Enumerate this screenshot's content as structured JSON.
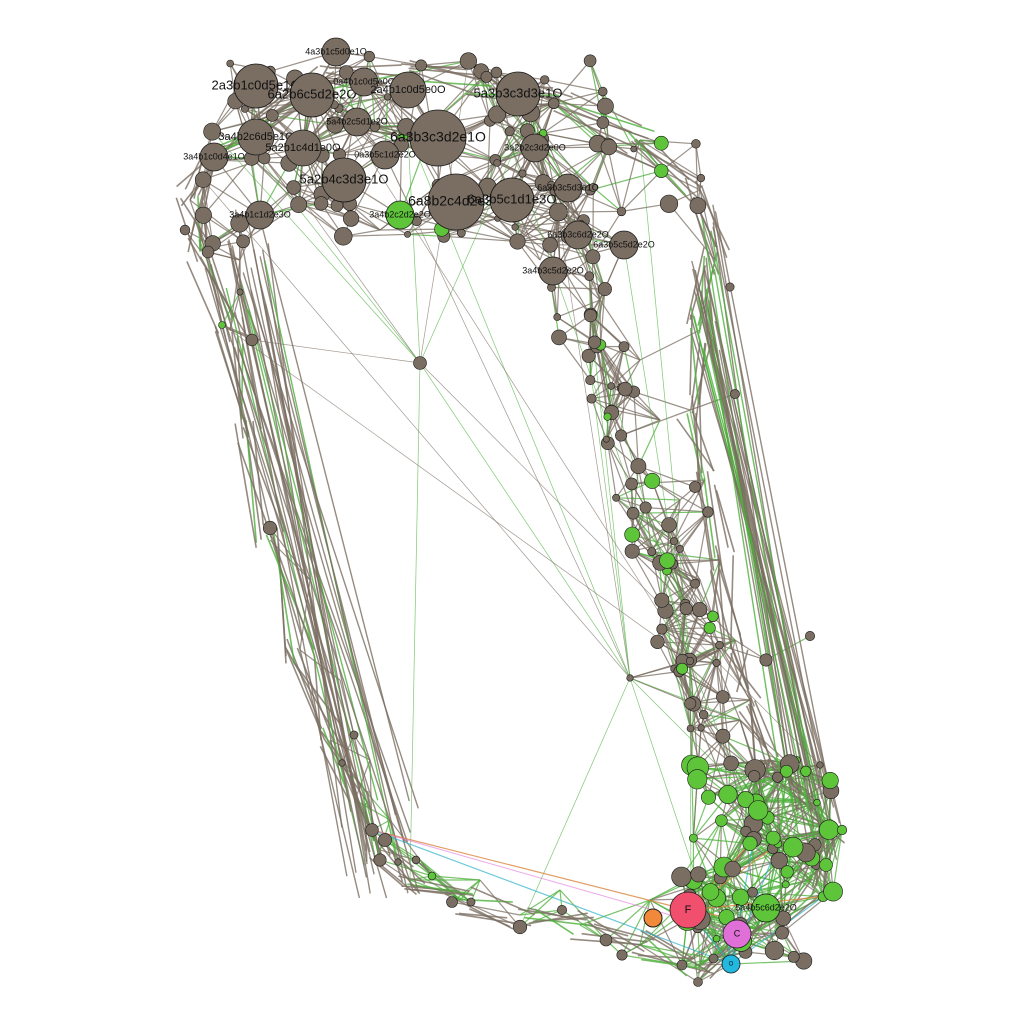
{
  "colors": {
    "background": "#ffffff",
    "node_default": "#7a6e62",
    "node_green": "#5ec43a",
    "node_red": "#f0506e",
    "node_orange": "#f08a3a",
    "node_pink": "#e070d8",
    "node_cyan": "#22b8e0",
    "edge_gray": "#7a6e62",
    "edge_green": "#4caf3a",
    "edge_orange": "#d9843c",
    "edge_cyan": "#2bb0c8",
    "edge_pink": "#e070d8"
  },
  "labeled_nodes": [
    {
      "id": "2a3b1c0d5e1O",
      "label": "2a3b1c0d5e1O",
      "color": "gray",
      "weight": 5
    },
    {
      "id": "4a3b1c5d0e1O",
      "label": "4a3b1c5d0e1O",
      "color": "gray",
      "weight": 3
    },
    {
      "id": "6a2b6c5d2e2O",
      "label": "6a2b6c5d2e2O",
      "color": "gray",
      "weight": 5
    },
    {
      "id": "0a4b1c0d5e0O",
      "label": "0a4b1c0d5e0O",
      "color": "gray",
      "weight": 3
    },
    {
      "id": "2a4b1c0d5e0O",
      "label": "2a4b1c0d5e0O",
      "color": "gray",
      "weight": 4
    },
    {
      "id": "5a3b3c3d3e1O",
      "label": "5a3b3c3d3e1O",
      "color": "gray",
      "weight": 5
    },
    {
      "id": "5a4b2c5d1e2O",
      "label": "5a4b2c5d1e2O",
      "color": "gray",
      "weight": 3
    },
    {
      "id": "6a3b3c3d2e1O",
      "label": "6a3b3c3d2e1O",
      "color": "gray",
      "weight": 6
    },
    {
      "id": "3a4b2c6d5e1O",
      "label": "3a4b2c6d5e1O",
      "color": "gray",
      "weight": 4
    },
    {
      "id": "5a2b1c4d1e0O",
      "label": "5a2b1c4d1e0O",
      "color": "gray",
      "weight": 4
    },
    {
      "id": "0a3b5c1d2e2O",
      "label": "0a3b5c1d2e2O",
      "color": "gray",
      "weight": 3
    },
    {
      "id": "3a2b2c3d2e0O",
      "label": "3a2b2c3d2e0O",
      "color": "gray",
      "weight": 3
    },
    {
      "id": "3a4b1c0d4e1O",
      "label": "3a4b1c0d4e1O",
      "color": "gray",
      "weight": 3
    },
    {
      "id": "5a2b4c3d3e1O",
      "label": "5a2b4c3d3e1O",
      "color": "gray",
      "weight": 5
    },
    {
      "id": "6a3b3c5d3e1O",
      "label": "6a3b3c5d3e1O",
      "color": "gray",
      "weight": 3
    },
    {
      "id": "3a4b1c1d2e3O",
      "label": "3a4b1c1d2e3O",
      "color": "gray",
      "weight": 3
    },
    {
      "id": "6a8b2c4d2e3O",
      "label": "6a8b2c4d2e3O",
      "color": "gray",
      "weight": 6
    },
    {
      "id": "6a3b5c1d1e3O",
      "label": "6a3b5c1d1e3O",
      "color": "gray",
      "weight": 5
    },
    {
      "id": "3a4b2c2d2e2O",
      "label": "3a4b2c2d2e2O",
      "color": "green",
      "weight": 3
    },
    {
      "id": "6a3b3c6d2e2O",
      "label": "6a3b3c6d2e2O",
      "color": "gray",
      "weight": 3
    },
    {
      "id": "6a3b5c5d2e2O",
      "label": "6a3b5c5d2e2O",
      "color": "gray",
      "weight": 3
    },
    {
      "id": "3a4b3c5d2e2O",
      "label": "3a4b3c5d2e2O",
      "color": "gray",
      "weight": 3
    },
    {
      "id": "5a4b5c6d2e2O",
      "label": "5a4b5c6d2e2O",
      "color": "green",
      "weight": 3
    },
    {
      "id": "F",
      "label": "F",
      "color": "red",
      "weight": 4
    },
    {
      "id": "C",
      "label": "C",
      "color": "pink",
      "weight": 3
    },
    {
      "id": "O",
      "label": "O",
      "color": "cyan",
      "weight": 2
    }
  ]
}
